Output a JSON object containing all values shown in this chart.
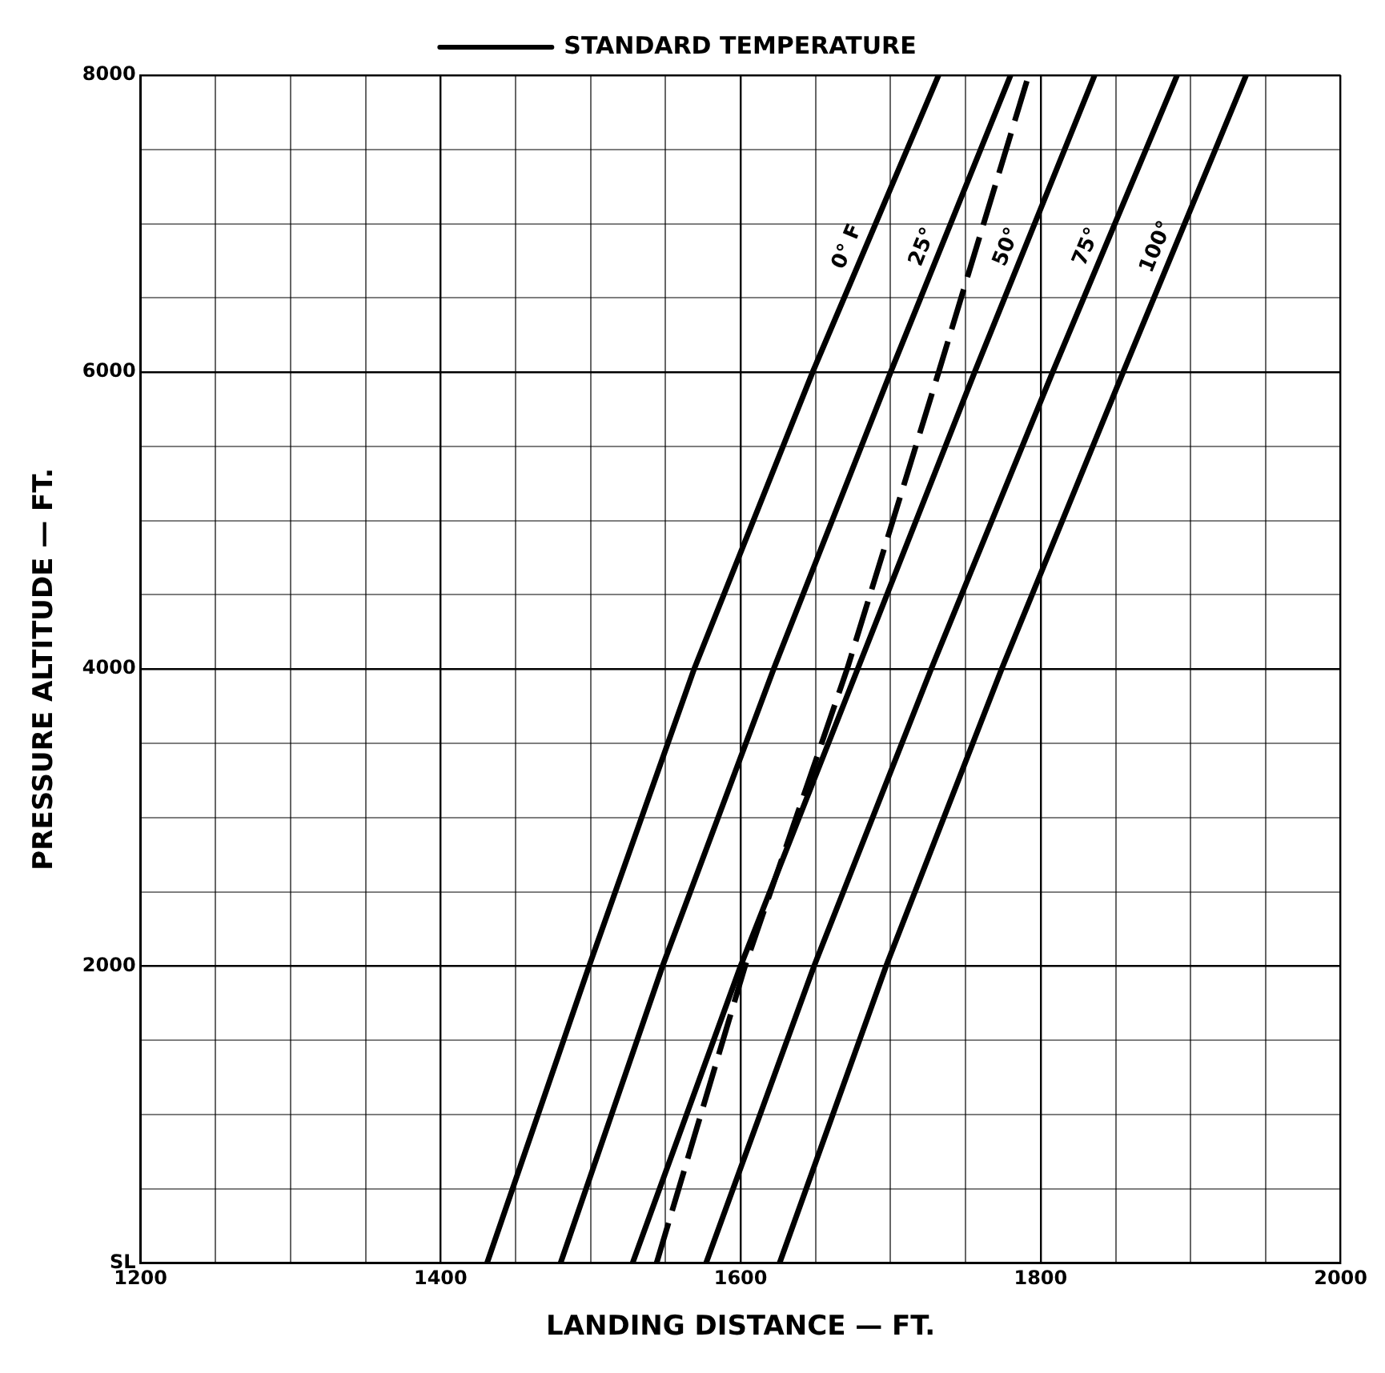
{
  "chart_data": {
    "type": "line",
    "xlabel": "LANDING DISTANCE — FT.",
    "ylabel": "PRESSURE ALTITUDE — FT.",
    "xlim": [
      1200,
      2000
    ],
    "ylim": [
      0,
      8000
    ],
    "xticks": [
      1200,
      {
        "value": 1250,
        "label": null
      },
      {
        "value": 1300,
        "label": null
      },
      {
        "value": 1350,
        "label": null
      },
      1400,
      {
        "value": 1450,
        "label": null
      },
      {
        "value": 1500,
        "label": null
      },
      {
        "value": 1550,
        "label": null
      },
      1600,
      {
        "value": 1650,
        "label": null
      },
      {
        "value": 1700,
        "label": null
      },
      {
        "value": 1750,
        "label": null
      },
      1800,
      {
        "value": 1850,
        "label": null
      },
      {
        "value": 1900,
        "label": null
      },
      {
        "value": 1950,
        "label": null
      },
      2000
    ],
    "yticks": [
      {
        "value": 0,
        "label": "SL"
      },
      {
        "value": 500,
        "label": null
      },
      {
        "value": 1000,
        "label": null
      },
      {
        "value": 1500,
        "label": null
      },
      2000,
      {
        "value": 2500,
        "label": null
      },
      {
        "value": 3000,
        "label": null
      },
      {
        "value": 3500,
        "label": null
      },
      4000,
      {
        "value": 4500,
        "label": null
      },
      {
        "value": 5000,
        "label": null
      },
      {
        "value": 5500,
        "label": null
      },
      6000,
      {
        "value": 6500,
        "label": null
      },
      {
        "value": 7000,
        "label": null
      },
      {
        "value": 7500,
        "label": null
      },
      8000
    ],
    "grid": true,
    "legend": "top",
    "marker": "none",
    "series": [
      {
        "name": "0° F",
        "color": "#000000",
        "x": [
          1431,
          1499,
          1569,
          1648,
          1732
        ],
        "values": [
          0,
          2000,
          4000,
          6000,
          8000
        ]
      },
      {
        "name": "25°",
        "color": "#000000",
        "x": [
          1480,
          1548,
          1622,
          1700,
          1780
        ],
        "values": [
          0,
          2000,
          4000,
          6000,
          8000
        ]
      },
      {
        "name": "STANDARD TEMPERATURE",
        "color": "#000000",
        "line_style": "dashed",
        "x": [
          1544,
          1603,
          1671,
          1732,
          1792
        ],
        "values": [
          0,
          2000,
          4000,
          6000,
          8000
        ]
      },
      {
        "name": "50°",
        "color": "#000000",
        "x": [
          1528,
          1600,
          1678,
          1756,
          1836
        ],
        "values": [
          0,
          2000,
          4000,
          6000,
          8000
        ]
      },
      {
        "name": "75°",
        "color": "#000000",
        "x": [
          1577,
          1649,
          1727,
          1808,
          1891
        ],
        "values": [
          0,
          2000,
          4000,
          6000,
          8000
        ]
      },
      {
        "name": "100°",
        "color": "#000000",
        "x": [
          1626,
          1697,
          1774,
          1855,
          1937
        ],
        "values": [
          0,
          2000,
          4000,
          6000,
          8000
        ]
      }
    ]
  }
}
